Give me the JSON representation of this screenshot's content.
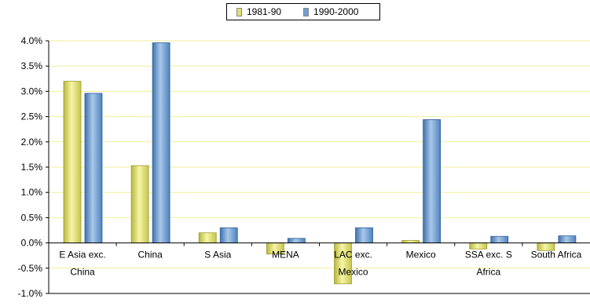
{
  "chart_data": {
    "type": "bar",
    "title": "",
    "xlabel": "",
    "ylabel": "",
    "ylim": [
      -0.01,
      0.04
    ],
    "yticks": [
      -0.01,
      -0.005,
      0,
      0.005,
      0.01,
      0.015,
      0.02,
      0.025,
      0.03,
      0.035,
      0.04
    ],
    "ytick_labels": [
      "-1.0%",
      "-0.5%",
      "0.0%",
      "0.5%",
      "1.0%",
      "1.5%",
      "2.0%",
      "2.5%",
      "3.0%",
      "3.5%",
      "4.0%"
    ],
    "grid": true,
    "legend_position": "top-center",
    "categories": [
      [
        "E Asia exc.",
        "China"
      ],
      [
        "China"
      ],
      [
        "S Asia"
      ],
      [
        "MENA"
      ],
      [
        "LAC exc.",
        "Mexico"
      ],
      [
        "Mexico"
      ],
      [
        "SSA exc. S",
        "Africa"
      ],
      [
        "South Africa"
      ]
    ],
    "series": [
      {
        "name": "1981-90",
        "color": "#e0de72",
        "values": [
          0.032,
          0.0153,
          0.002,
          -0.0022,
          -0.0081,
          0.0005,
          -0.0012,
          -0.0015
        ]
      },
      {
        "name": "1990-2000",
        "color": "#6f9fd1",
        "values": [
          0.0296,
          0.0396,
          0.003,
          0.0009,
          0.003,
          0.0244,
          0.0013,
          0.0014
        ]
      }
    ]
  }
}
